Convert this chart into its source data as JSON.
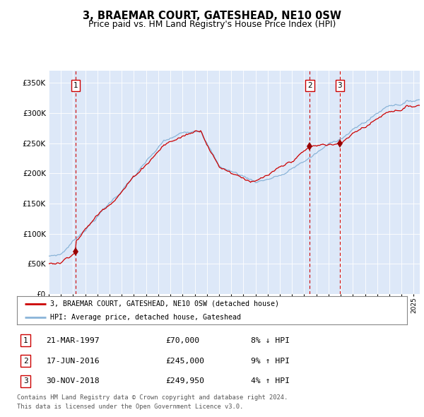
{
  "title": "3, BRAEMAR COURT, GATESHEAD, NE10 0SW",
  "subtitle": "Price paid vs. HM Land Registry's House Price Index (HPI)",
  "hpi_label": "HPI: Average price, detached house, Gateshead",
  "property_label": "3, BRAEMAR COURT, GATESHEAD, NE10 0SW (detached house)",
  "footer1": "Contains HM Land Registry data © Crown copyright and database right 2024.",
  "footer2": "This data is licensed under the Open Government Licence v3.0.",
  "transactions": [
    {
      "num": 1,
      "date": "21-MAR-1997",
      "price": 70000,
      "hpi_diff": "8% ↓ HPI",
      "year": 1997.22
    },
    {
      "num": 2,
      "date": "17-JUN-2016",
      "price": 245000,
      "hpi_diff": "9% ↑ HPI",
      "year": 2016.46
    },
    {
      "num": 3,
      "date": "30-NOV-2018",
      "price": 249950,
      "hpi_diff": "4% ↑ HPI",
      "year": 2018.92
    }
  ],
  "ylim": [
    0,
    370000
  ],
  "xlim_start": 1995.0,
  "xlim_end": 2025.5,
  "plot_bg": "#dde8f8",
  "hpi_color": "#8ab4d8",
  "price_color": "#cc0000",
  "vline_color": "#cc0000",
  "box_color": "#cc0000",
  "yticks": [
    0,
    50000,
    100000,
    150000,
    200000,
    250000,
    300000,
    350000
  ]
}
